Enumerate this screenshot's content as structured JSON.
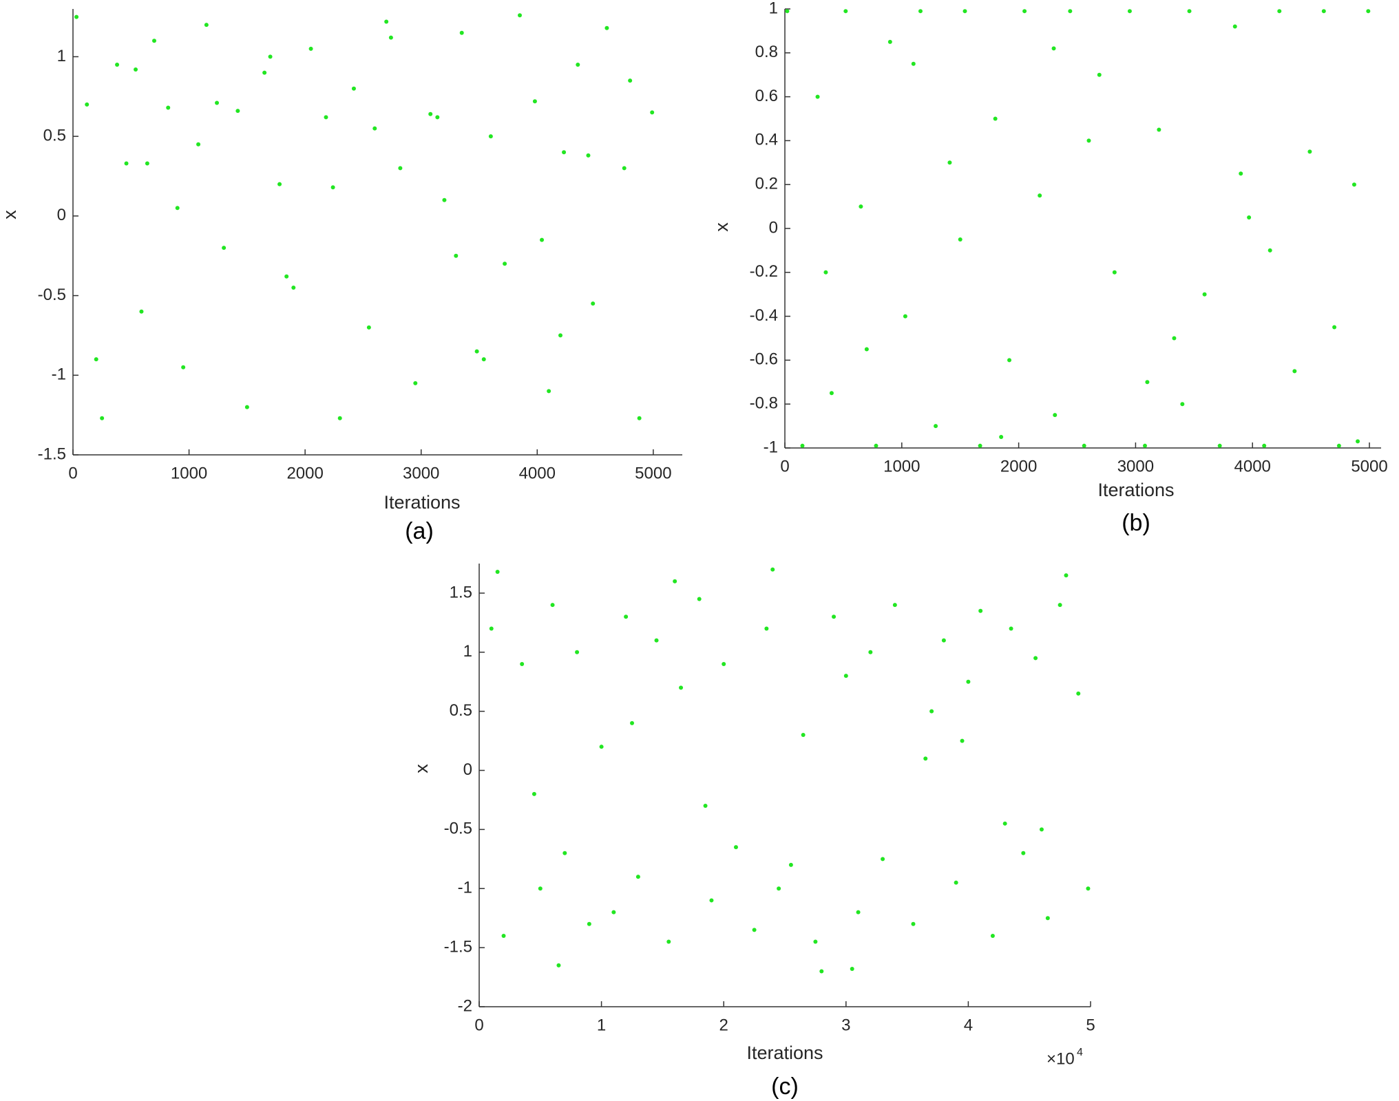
{
  "chart_data": [
    {
      "type": "scatter",
      "xlabel": "Iterations",
      "ylabel": "x",
      "caption": "(a)",
      "color": "#22e622",
      "xlim": [
        0,
        5250
      ],
      "ylim": [
        -1.5,
        1.3
      ],
      "xticks": [
        0,
        1000,
        2000,
        3000,
        4000,
        5000
      ],
      "yticks": [
        -1.5,
        -1,
        -0.5,
        0,
        0.5,
        1
      ],
      "x": [
        30,
        120,
        250,
        380,
        460,
        590,
        700,
        820,
        950,
        1080,
        1150,
        1300,
        1420,
        1500,
        1650,
        1780,
        1900,
        2050,
        2180,
        2300,
        2420,
        2550,
        2700,
        2820,
        2950,
        3080,
        3200,
        3350,
        3480,
        3600,
        3720,
        3850,
        3980,
        4100,
        4230,
        4350,
        4480,
        4600,
        4750,
        4880,
        4990,
        200,
        900,
        1700,
        2600,
        3300,
        4200,
        4800,
        640,
        1240,
        2240,
        3140,
        4040,
        540,
        1840,
        2740,
        3540,
        4440
      ],
      "values": [
        1.25,
        0.7,
        -1.27,
        0.95,
        0.33,
        -0.6,
        1.1,
        0.68,
        -0.95,
        0.45,
        1.2,
        -0.2,
        0.66,
        -1.2,
        0.9,
        0.2,
        -0.45,
        1.05,
        0.62,
        -1.27,
        0.8,
        -0.7,
        1.22,
        0.3,
        -1.05,
        0.64,
        0.1,
        1.15,
        -0.85,
        0.5,
        -0.3,
        1.26,
        0.72,
        -1.1,
        0.4,
        0.95,
        -0.55,
        1.18,
        0.3,
        -1.27,
        0.65,
        -0.9,
        0.05,
        1.0,
        0.55,
        -0.25,
        -0.75,
        0.85,
        0.33,
        0.71,
        0.18,
        0.62,
        -0.15,
        0.92,
        -0.38,
        1.12,
        -0.9,
        0.38
      ]
    },
    {
      "type": "scatter",
      "xlabel": "Iterations",
      "ylabel": "x",
      "caption": "(b)",
      "color": "#22e622",
      "xlim": [
        0,
        5100
      ],
      "ylim": [
        -1,
        1
      ],
      "xticks": [
        0,
        1000,
        2000,
        3000,
        4000,
        5000
      ],
      "yticks": [
        -1,
        -0.8,
        -0.6,
        -0.4,
        -0.2,
        0,
        0.2,
        0.4,
        0.6,
        0.8,
        1
      ],
      "x": [
        20,
        150,
        280,
        400,
        520,
        650,
        780,
        900,
        1030,
        1160,
        1290,
        1410,
        1540,
        1670,
        1800,
        1920,
        2050,
        2180,
        2310,
        2440,
        2560,
        2690,
        2820,
        2950,
        3080,
        3200,
        3330,
        3460,
        3590,
        3720,
        3850,
        3970,
        4100,
        4230,
        4360,
        4490,
        4610,
        4740,
        4870,
        4990,
        350,
        1100,
        1850,
        2600,
        3400,
        4150,
        4900,
        700,
        1500,
        2300,
        3100,
        3900,
        4700
      ],
      "values": [
        0.99,
        -0.99,
        0.6,
        -0.75,
        0.99,
        0.1,
        -0.99,
        0.85,
        -0.4,
        0.99,
        -0.9,
        0.3,
        0.99,
        -0.99,
        0.5,
        -0.6,
        0.99,
        0.15,
        -0.85,
        0.99,
        -0.99,
        0.7,
        -0.2,
        0.99,
        -0.99,
        0.45,
        -0.5,
        0.99,
        -0.3,
        -0.99,
        0.92,
        0.05,
        -0.99,
        0.99,
        -0.65,
        0.35,
        0.99,
        -0.99,
        0.2,
        0.99,
        -0.2,
        0.75,
        -0.95,
        0.4,
        -0.8,
        -0.1,
        -0.97,
        -0.55,
        -0.05,
        0.82,
        -0.7,
        0.25,
        -0.45
      ]
    },
    {
      "type": "scatter",
      "xlabel": "Iterations",
      "ylabel": "x",
      "caption": "(c)",
      "color": "#22e622",
      "x_multiplier": "×10",
      "x_multiplier_exp": "4",
      "xlim": [
        0,
        5
      ],
      "ylim": [
        -2,
        1.75
      ],
      "xticks": [
        0,
        1,
        2,
        3,
        4,
        5
      ],
      "yticks": [
        -2,
        -1.5,
        -1,
        -0.5,
        0,
        0.5,
        1,
        1.5
      ],
      "x": [
        0.1,
        0.2,
        0.35,
        0.5,
        0.6,
        0.7,
        0.8,
        0.9,
        1.0,
        1.1,
        1.2,
        1.3,
        1.45,
        1.55,
        1.65,
        1.8,
        1.9,
        2.0,
        2.1,
        2.25,
        2.35,
        2.45,
        2.55,
        2.65,
        2.75,
        2.9,
        3.0,
        3.1,
        3.2,
        3.3,
        3.4,
        3.55,
        3.65,
        3.8,
        3.9,
        4.0,
        4.1,
        4.2,
        4.35,
        4.45,
        4.55,
        4.65,
        4.75,
        4.9,
        4.98,
        0.15,
        0.65,
        1.25,
        1.85,
        2.4,
        3.05,
        3.7,
        4.3,
        4.8,
        0.45,
        1.6,
        2.8,
        3.95,
        4.6
      ],
      "values": [
        1.2,
        -1.4,
        0.9,
        -1.0,
        1.4,
        -0.7,
        1.0,
        -1.3,
        0.2,
        -1.2,
        1.3,
        -0.9,
        1.1,
        -1.45,
        0.7,
        1.45,
        -1.1,
        0.9,
        -0.65,
        -1.35,
        1.2,
        -1.0,
        -0.8,
        0.3,
        -1.45,
        1.3,
        0.8,
        -1.2,
        1.0,
        -0.75,
        1.4,
        -1.3,
        0.1,
        1.1,
        -0.95,
        0.75,
        1.35,
        -1.4,
        1.2,
        -0.7,
        0.95,
        -1.25,
        1.4,
        0.65,
        -1.0,
        1.68,
        -1.65,
        0.4,
        -0.3,
        1.7,
        -1.68,
        0.5,
        -0.45,
        1.65,
        -0.2,
        1.6,
        -1.7,
        0.25,
        -0.5
      ]
    }
  ]
}
